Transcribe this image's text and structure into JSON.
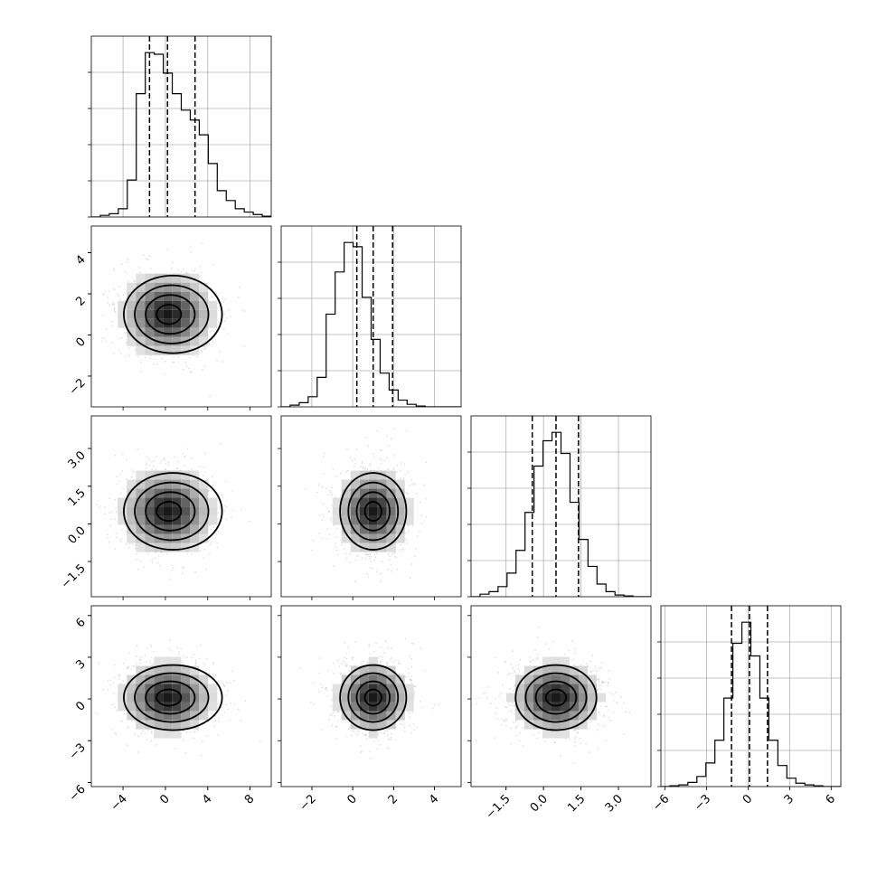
{
  "chart_data": {
    "type": "corner",
    "parameters": [
      {
        "index": 0,
        "range": [
          -7,
          10
        ],
        "ticks": [
          -4,
          0,
          4,
          8
        ],
        "tick_labels": [
          "−4",
          "0",
          "4",
          "8"
        ],
        "quantiles": [
          -1.5,
          0.2,
          2.8
        ]
      },
      {
        "index": 1,
        "range": [
          -3.5,
          5.3
        ],
        "ticks": [
          -2,
          0,
          2,
          4
        ],
        "tick_labels": [
          "−2",
          "0",
          "2",
          "4"
        ],
        "quantiles": [
          0.2,
          1.0,
          1.95
        ]
      },
      {
        "index": 2,
        "range": [
          -2.9,
          4.3
        ],
        "ticks": [
          -1.5,
          0.0,
          1.5,
          3.0
        ],
        "tick_labels": [
          "−1.5",
          "0.0",
          "1.5",
          "3.0"
        ],
        "quantiles": [
          -0.45,
          0.5,
          1.4
        ]
      },
      {
        "index": 3,
        "range": [
          -6.3,
          6.7
        ],
        "ticks": [
          -6,
          -3,
          0,
          3,
          6
        ],
        "tick_labels": [
          "−6",
          "−3",
          "0",
          "3",
          "6"
        ],
        "quantiles": [
          -1.2,
          0.1,
          1.4
        ]
      }
    ],
    "histograms": [
      {
        "param": 0,
        "bin_start": -7,
        "bin_width": 0.85,
        "counts": [
          0,
          2,
          4,
          10,
          45,
          150,
          200,
          198,
          175,
          150,
          130,
          118,
          100,
          65,
          32,
          20,
          10,
          6,
          3,
          1
        ]
      },
      {
        "param": 1,
        "bin_start": -3.5,
        "bin_width": 0.44,
        "counts": [
          0,
          2,
          5,
          12,
          35,
          110,
          160,
          195,
          190,
          130,
          80,
          40,
          20,
          8,
          3,
          1,
          0,
          0,
          0,
          0
        ]
      },
      {
        "param": 2,
        "bin_start": -2.9,
        "bin_width": 0.36,
        "counts": [
          0,
          3,
          6,
          12,
          28,
          55,
          100,
          155,
          185,
          195,
          170,
          112,
          68,
          36,
          15,
          6,
          2,
          1,
          0,
          0
        ]
      },
      {
        "param": 3,
        "bin_start": -6.3,
        "bin_width": 0.65,
        "counts": [
          0,
          1,
          2,
          5,
          12,
          28,
          55,
          105,
          170,
          195,
          155,
          105,
          55,
          25,
          10,
          4,
          2,
          1,
          0,
          0
        ]
      }
    ],
    "pairs": [
      {
        "x": 0,
        "y": 1,
        "center": [
          0.2,
          1.0
        ],
        "spread": [
          2.2,
          1.05
        ]
      },
      {
        "x": 0,
        "y": 2,
        "center": [
          0.2,
          0.5
        ],
        "spread": [
          2.2,
          0.85
        ]
      },
      {
        "x": 0,
        "y": 3,
        "center": [
          0.2,
          0.1
        ],
        "spread": [
          2.2,
          1.3
        ]
      },
      {
        "x": 1,
        "y": 2,
        "center": [
          1.0,
          0.5
        ],
        "spread": [
          0.9,
          0.85
        ]
      },
      {
        "x": 1,
        "y": 3,
        "center": [
          1.0,
          0.1
        ],
        "spread": [
          0.9,
          1.3
        ]
      },
      {
        "x": 2,
        "y": 3,
        "center": [
          0.5,
          0.1
        ],
        "spread": [
          0.9,
          1.3
        ]
      }
    ],
    "grid": true,
    "title": "",
    "xlabel": "",
    "ylabel": ""
  }
}
